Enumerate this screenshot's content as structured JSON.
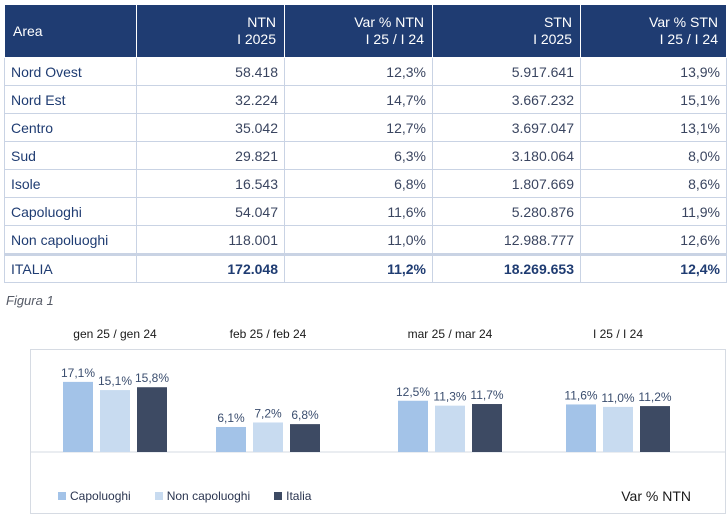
{
  "table": {
    "headers": [
      [
        "Area",
        ""
      ],
      [
        "NTN",
        "I 2025"
      ],
      [
        "Var % NTN",
        "I 25 / I 24"
      ],
      [
        "STN",
        "I 2025"
      ],
      [
        "Var % STN",
        "I 25 / I 24"
      ]
    ],
    "rows": [
      [
        "Nord Ovest",
        "58.418",
        "12,3%",
        "5.917.641",
        "13,9%"
      ],
      [
        "Nord Est",
        "32.224",
        "14,7%",
        "3.667.232",
        "15,1%"
      ],
      [
        "Centro",
        "35.042",
        "12,7%",
        "3.697.047",
        "13,1%"
      ],
      [
        "Sud",
        "29.821",
        "6,3%",
        "3.180.064",
        "8,0%"
      ],
      [
        "Isole",
        "16.543",
        "6,8%",
        "1.807.669",
        "8,6%"
      ],
      [
        "Capoluoghi",
        "54.047",
        "11,6%",
        "5.280.876",
        "11,9%"
      ],
      [
        "Non capoluoghi",
        "118.001",
        "11,0%",
        "12.988.777",
        "12,6%"
      ]
    ],
    "total": [
      "ITALIA",
      "172.048",
      "11,2%",
      "18.269.653",
      "12,4%"
    ]
  },
  "caption": "Figura 1",
  "chart_data": {
    "type": "bar",
    "categories": [
      "gen 25 / gen 24",
      "feb 25 / feb 24",
      "mar 25 / mar 24",
      "I 25 / I 24"
    ],
    "series": [
      {
        "name": "Capoluoghi",
        "values": [
          17.1,
          6.1,
          12.5,
          11.6
        ],
        "labels": [
          "17,1%",
          "6,1%",
          "12,5%",
          "11,6%"
        ],
        "color": "#a3c3e8"
      },
      {
        "name": "Non capoluoghi",
        "values": [
          15.1,
          7.2,
          11.3,
          11.0
        ],
        "labels": [
          "15,1%",
          "7,2%",
          "11,3%",
          "11,0%"
        ],
        "color": "#c8dbf0"
      },
      {
        "name": "Italia",
        "values": [
          15.8,
          6.8,
          11.7,
          11.2
        ],
        "labels": [
          "15,8%",
          "6,8%",
          "11,7%",
          "11,2%"
        ],
        "color": "#3d4a63"
      }
    ],
    "ylim": [
      0,
      20
    ],
    "ylabel": "Var % NTN",
    "legend": "bottom-left",
    "grid": false
  }
}
